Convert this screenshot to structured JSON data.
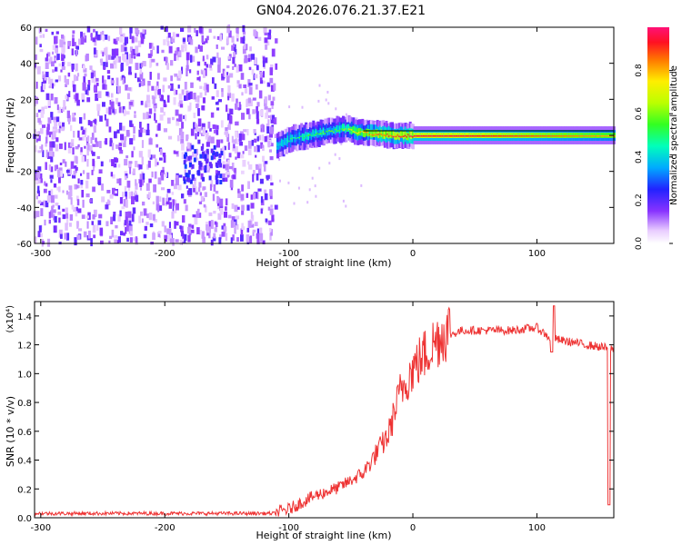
{
  "title": "GN04.2026.076.21.37.E21",
  "chart_data": [
    {
      "type": "heatmap",
      "name": "spectrogram",
      "xlabel": "Height of straight line (km)",
      "ylabel": "Frequency (Hz)",
      "xlim": [
        -305,
        162
      ],
      "ylim": [
        -60,
        60
      ],
      "xticks": [
        -300,
        -200,
        -100,
        0,
        100
      ],
      "yticks": [
        -60,
        -40,
        -20,
        0,
        20,
        40,
        60
      ],
      "xtick_labels": [
        "-300",
        "-200",
        "-100",
        "0",
        "100"
      ],
      "ytick_labels": [
        "-60",
        "-40",
        "-20",
        "0",
        "20",
        "40",
        "60"
      ],
      "noise_region": [
        -305,
        -110
      ],
      "signal_ridge": [
        {
          "x": -110,
          "y": -6,
          "amp": 0.35
        },
        {
          "x": -100,
          "y": -2,
          "amp": 0.45
        },
        {
          "x": -85,
          "y": 0,
          "amp": 0.55
        },
        {
          "x": -70,
          "y": 2,
          "amp": 0.55
        },
        {
          "x": -55,
          "y": 4,
          "amp": 0.6
        },
        {
          "x": -45,
          "y": 2,
          "amp": 0.75
        },
        {
          "x": -30,
          "y": 1,
          "amp": 0.85
        },
        {
          "x": -15,
          "y": 0,
          "amp": 0.9
        },
        {
          "x": 0,
          "y": 0,
          "amp": 0.95
        },
        {
          "x": 40,
          "y": 0,
          "amp": 0.95
        },
        {
          "x": 80,
          "y": 0,
          "amp": 0.9
        },
        {
          "x": 120,
          "y": 0,
          "amp": 0.85
        },
        {
          "x": 162,
          "y": 0,
          "amp": 0.8
        }
      ]
    },
    {
      "type": "line",
      "name": "snr",
      "xlabel": "Height of straight line (km)",
      "ylabel": "SNR (10 * v/v)",
      "scale_label": "(x10⁴)",
      "xlim": [
        -305,
        162
      ],
      "ylim": [
        0,
        1.5
      ],
      "xticks": [
        -300,
        -200,
        -100,
        0,
        100
      ],
      "yticks": [
        0,
        0.2,
        0.4,
        0.6,
        0.8,
        1.0,
        1.2,
        1.4
      ],
      "xtick_labels": [
        "-300",
        "-200",
        "-100",
        "0",
        "100"
      ],
      "ytick_labels": [
        "0.0",
        "0.2",
        "0.4",
        "0.6",
        "0.8",
        "1.0",
        "1.2",
        "1.4"
      ],
      "color": "#ee3333",
      "x": [
        -305,
        -200,
        -110,
        -100,
        -80,
        -60,
        -40,
        -20,
        -10,
        0,
        10,
        20,
        30,
        40,
        60,
        80,
        100,
        110,
        120,
        140,
        162
      ],
      "y": [
        0.03,
        0.03,
        0.03,
        0.05,
        0.14,
        0.2,
        0.3,
        0.55,
        0.85,
        1.0,
        1.1,
        1.2,
        1.27,
        1.3,
        1.3,
        1.3,
        1.32,
        1.25,
        1.23,
        1.2,
        1.17
      ]
    }
  ],
  "colorbar": {
    "label": "Normalized spectral amplitude",
    "range": [
      0.0,
      1.0
    ],
    "ticks": [
      0.0,
      0.2,
      0.4,
      0.6,
      0.8
    ],
    "tick_labels": [
      "0.0",
      "0.2",
      "0.4",
      "0.6",
      "0.8"
    ]
  }
}
